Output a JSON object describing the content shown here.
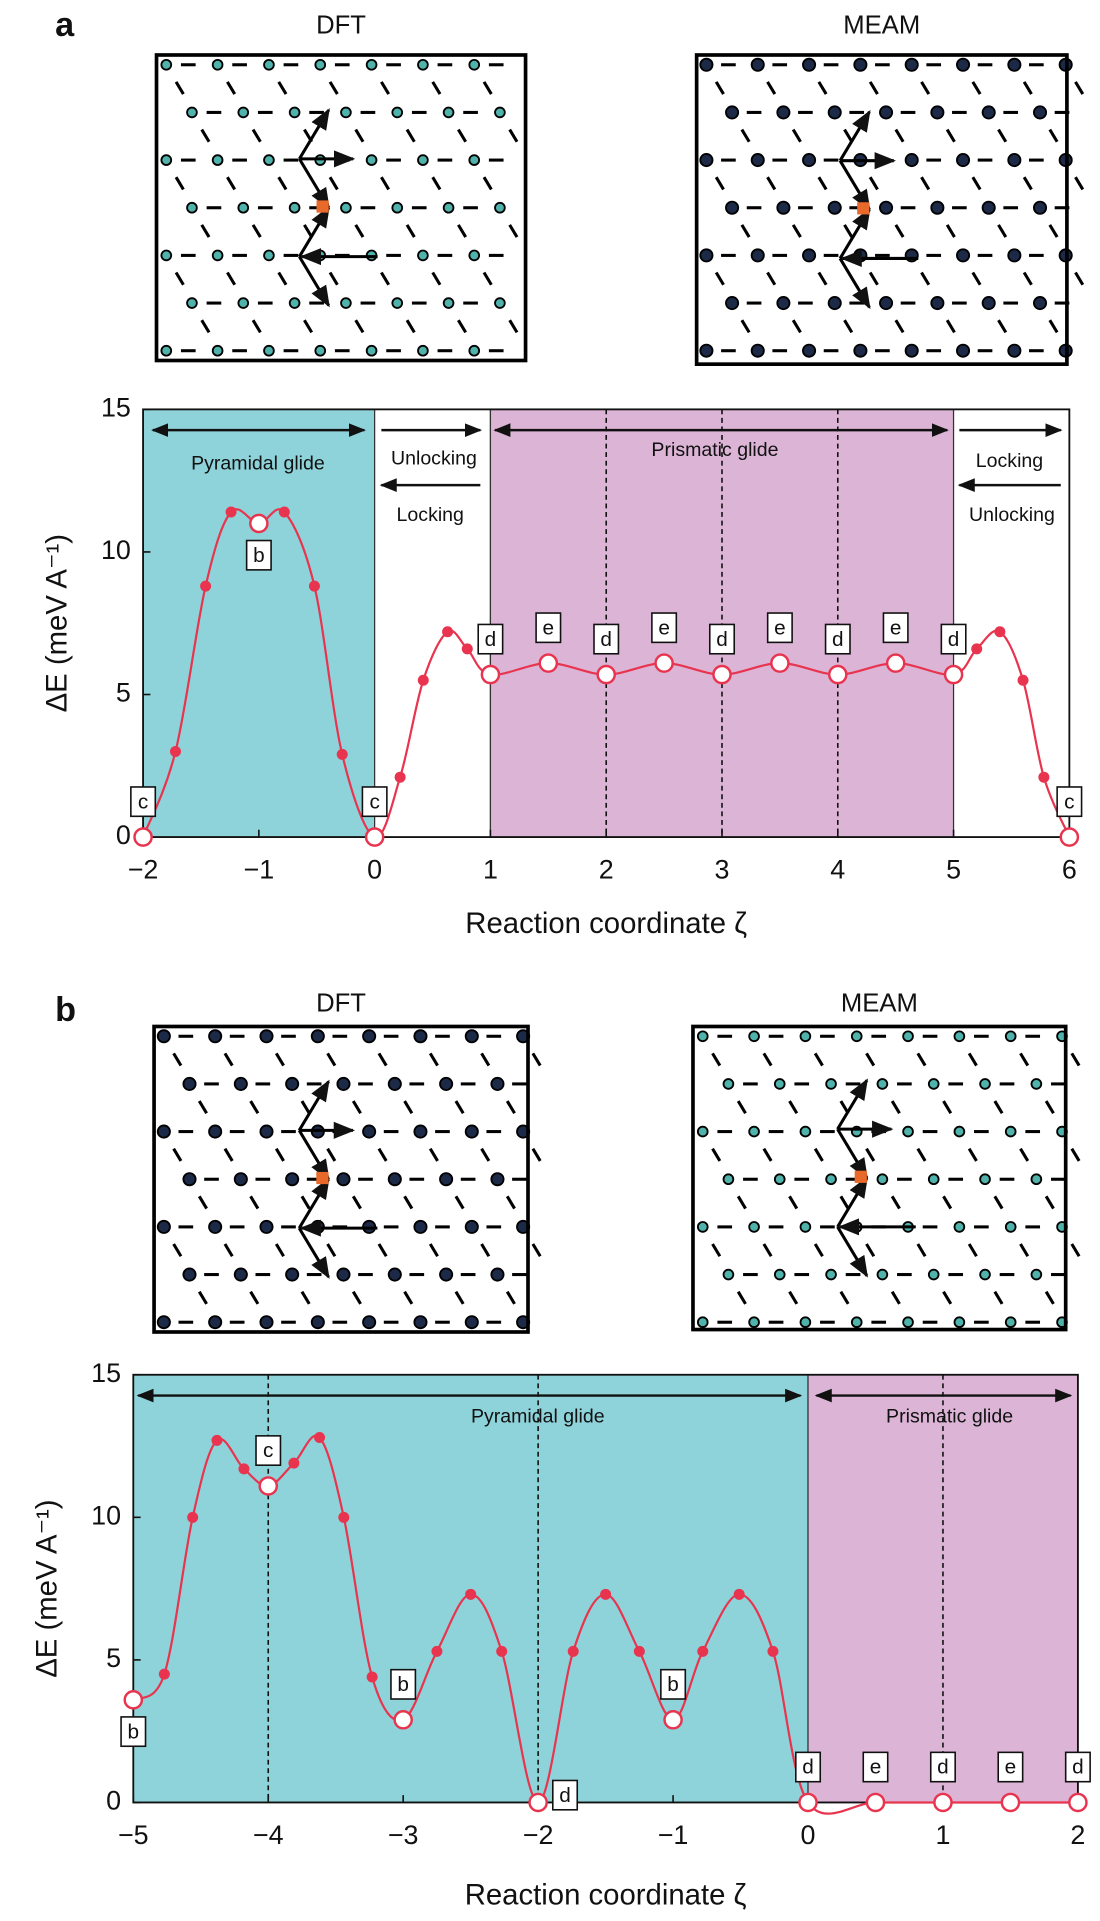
{
  "chart_data": [
    {
      "type": "line",
      "panel": "a",
      "inset_titles": [
        "DFT",
        "MEAM"
      ],
      "xlabel": "Reaction coordinate ζ",
      "ylabel": "ΔE (meV A⁻¹)",
      "xlim": [
        -2,
        6
      ],
      "ylim": [
        0,
        15
      ],
      "xticks": [
        {
          "value": -2,
          "label": "−2"
        },
        {
          "value": -1,
          "label": "−1"
        },
        0,
        1,
        2,
        3,
        4,
        5,
        6
      ],
      "yticks": [
        0,
        5,
        10,
        15
      ],
      "regions": [
        {
          "from": -2,
          "to": 0,
          "color": "#8fd3da"
        },
        {
          "from": 0,
          "to": 1,
          "color": "#ffffff"
        },
        {
          "from": 1,
          "to": 5,
          "color": "#dcb4d6"
        },
        {
          "from": 5,
          "to": 6,
          "color": "#ffffff"
        }
      ],
      "dividers": [
        2,
        3,
        4
      ],
      "annotations": [
        "Pyramidal glide",
        "Unlocking",
        "Locking",
        "Prismatic glide",
        "Locking",
        "Unlocking"
      ],
      "series": [
        {
          "color": "#e8344e",
          "x": [
            -2,
            -1.72,
            -1.46,
            -1.24,
            -1.0,
            -0.78,
            -0.52,
            -0.28,
            0,
            0.22,
            0.42,
            0.63,
            0.8,
            1,
            1.5,
            2,
            2.5,
            3,
            3.5,
            4,
            4.5,
            5,
            5.2,
            5.4,
            5.6,
            5.78,
            6
          ],
          "values": [
            0,
            3.0,
            8.8,
            11.4,
            11.0,
            11.4,
            8.8,
            2.9,
            0,
            2.1,
            5.5,
            7.2,
            6.6,
            5.7,
            6.1,
            5.7,
            6.1,
            5.7,
            6.1,
            5.7,
            6.1,
            5.7,
            6.6,
            7.2,
            5.5,
            2.1,
            0
          ],
          "point_labels": [
            "c",
            null,
            null,
            null,
            "b",
            null,
            null,
            null,
            "c",
            null,
            null,
            null,
            null,
            "d",
            "e",
            "d",
            "e",
            "d",
            "e",
            "d",
            "e",
            "d",
            null,
            null,
            null,
            null,
            "c"
          ]
        }
      ]
    },
    {
      "type": "line",
      "panel": "b",
      "inset_titles": [
        "DFT",
        "MEAM"
      ],
      "xlabel": "Reaction coordinate ζ",
      "ylabel": "ΔE (meV A⁻¹)",
      "xlim": [
        -5,
        2
      ],
      "ylim": [
        0,
        15
      ],
      "xticks": [
        {
          "value": -5,
          "label": "−5"
        },
        {
          "value": -4,
          "label": "−4"
        },
        {
          "value": -3,
          "label": "−3"
        },
        {
          "value": -2,
          "label": "−2"
        },
        {
          "value": -1,
          "label": "−1"
        },
        0,
        1,
        2
      ],
      "yticks": [
        0,
        5,
        10,
        15
      ],
      "regions": [
        {
          "from": -5,
          "to": 0,
          "color": "#8fd3da"
        },
        {
          "from": 0,
          "to": 2,
          "color": "#dcb4d6"
        }
      ],
      "dividers": [
        -4,
        -2,
        1
      ],
      "annotations": [
        "Pyramidal glide",
        "Prismatic glide"
      ],
      "series": [
        {
          "color": "#e8344e",
          "x": [
            -5,
            -4.77,
            -4.56,
            -4.38,
            -4.18,
            -4,
            -3.81,
            -3.62,
            -3.44,
            -3.23,
            -3,
            -2.75,
            -2.5,
            -2.27,
            -2,
            -1.74,
            -1.5,
            -1.25,
            -1,
            -0.78,
            -0.51,
            -0.26,
            0,
            0.5,
            1,
            1.5,
            2
          ],
          "values": [
            3.6,
            4.5,
            10,
            12.7,
            11.7,
            11.1,
            11.9,
            12.8,
            10,
            4.4,
            2.9,
            5.3,
            7.3,
            5.3,
            0,
            5.3,
            7.3,
            5.3,
            2.9,
            5.3,
            7.3,
            5.3,
            0,
            0,
            0,
            0,
            0
          ],
          "point_labels": [
            "b",
            null,
            null,
            null,
            null,
            "c",
            null,
            null,
            null,
            null,
            "b",
            null,
            null,
            null,
            "d",
            null,
            null,
            null,
            "b",
            null,
            null,
            null,
            "d",
            "e",
            "d",
            "e",
            "d"
          ]
        }
      ]
    }
  ]
}
